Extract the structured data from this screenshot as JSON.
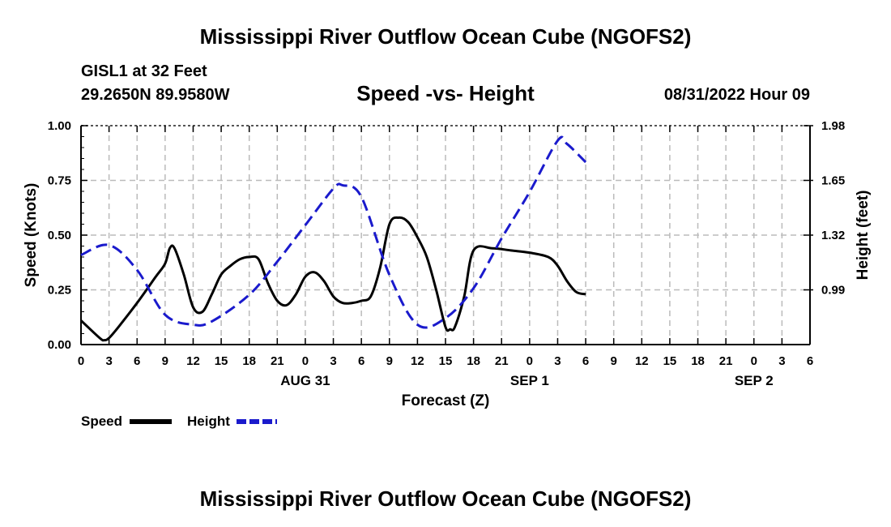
{
  "header": {
    "title": "Mississippi River Outflow Ocean Cube (NGOFS2)",
    "station": "GISL1 at 32 Feet",
    "coordinates": "29.2650N  89.9580W",
    "subtitle": "Speed -vs- Height",
    "datetime": "08/31/2022 Hour 09",
    "footer_title": "Mississippi River Outflow Ocean Cube (NGOFS2)"
  },
  "colors": {
    "speed": "#000000",
    "height": "#1a1acc",
    "grid": "#bbbbbb"
  },
  "chart_data": {
    "type": "line",
    "xlabel": "Forecast (Z)",
    "ylabel_left": "Speed (Knots)",
    "ylabel_right": "Height (feet)",
    "x_unit": "hours from Aug 31 00Z",
    "xlim": [
      -24,
      54
    ],
    "ylim_left": [
      0.0,
      1.0
    ],
    "ylim_right": [
      0.66,
      1.98
    ],
    "x_ticks": [
      -24,
      -21,
      -18,
      -15,
      -12,
      -9,
      -6,
      -3,
      0,
      3,
      6,
      9,
      12,
      15,
      18,
      21,
      24,
      27,
      30,
      33,
      36,
      39,
      42,
      45,
      48,
      51,
      54
    ],
    "x_tick_labels": [
      "0",
      "3",
      "6",
      "9",
      "12",
      "15",
      "18",
      "21",
      "0",
      "3",
      "6",
      "9",
      "12",
      "15",
      "18",
      "21",
      "0",
      "3",
      "6",
      "9",
      "12",
      "15",
      "18",
      "21",
      "0",
      "3",
      "6"
    ],
    "day_labels": [
      {
        "x": 0,
        "label": "AUG 31"
      },
      {
        "x": 24,
        "label": "SEP 1"
      },
      {
        "x": 48,
        "label": "SEP 2"
      }
    ],
    "y_ticks_left": [
      0.0,
      0.25,
      0.5,
      0.75,
      1.0
    ],
    "y_tick_labels_left": [
      "0.00",
      "0.25",
      "0.50",
      "0.75",
      "1.00"
    ],
    "y_ticks_right": [
      0.99,
      1.32,
      1.65,
      1.98
    ],
    "y_tick_labels_right": [
      "0.99",
      "1.32",
      "1.65",
      "1.98"
    ],
    "series": [
      {
        "name": "Speed",
        "axis": "left",
        "style": "solid",
        "x": [
          -24,
          -22,
          -21.5,
          -21,
          -20,
          -18,
          -16,
          -15,
          -14.5,
          -14,
          -13,
          -12,
          -11,
          -10,
          -9,
          -8,
          -7,
          -6,
          -5,
          -4,
          -3,
          -2,
          -1,
          0,
          1,
          2,
          3,
          4,
          5,
          6,
          7,
          8,
          9,
          10,
          11,
          12,
          13,
          14,
          15,
          15.5,
          16,
          17,
          18,
          20,
          22,
          24,
          26,
          27,
          28,
          29,
          30
        ],
        "values": [
          0.11,
          0.03,
          0.02,
          0.03,
          0.08,
          0.19,
          0.31,
          0.37,
          0.44,
          0.44,
          0.32,
          0.17,
          0.15,
          0.23,
          0.32,
          0.36,
          0.39,
          0.4,
          0.39,
          0.28,
          0.2,
          0.18,
          0.23,
          0.31,
          0.33,
          0.29,
          0.22,
          0.19,
          0.19,
          0.2,
          0.22,
          0.35,
          0.55,
          0.58,
          0.56,
          0.49,
          0.4,
          0.25,
          0.08,
          0.07,
          0.08,
          0.22,
          0.43,
          0.44,
          0.43,
          0.42,
          0.4,
          0.36,
          0.29,
          0.24,
          0.23
        ]
      },
      {
        "name": "Height",
        "axis": "right",
        "style": "dashed",
        "x": [
          -24,
          -21,
          -18,
          -15,
          -12,
          -10,
          -6,
          -3,
          0,
          3,
          4,
          6,
          9,
          12,
          15,
          18,
          21,
          24,
          27,
          28,
          30
        ],
        "values": [
          1.2,
          1.26,
          1.11,
          0.84,
          0.78,
          0.8,
          0.96,
          1.16,
          1.38,
          1.6,
          1.62,
          1.55,
          1.08,
          0.78,
          0.82,
          1.0,
          1.3,
          1.58,
          1.89,
          1.87,
          1.76
        ]
      }
    ],
    "legend": [
      {
        "name": "Speed",
        "label": "Speed"
      },
      {
        "name": "Height",
        "label": "Height"
      }
    ]
  }
}
